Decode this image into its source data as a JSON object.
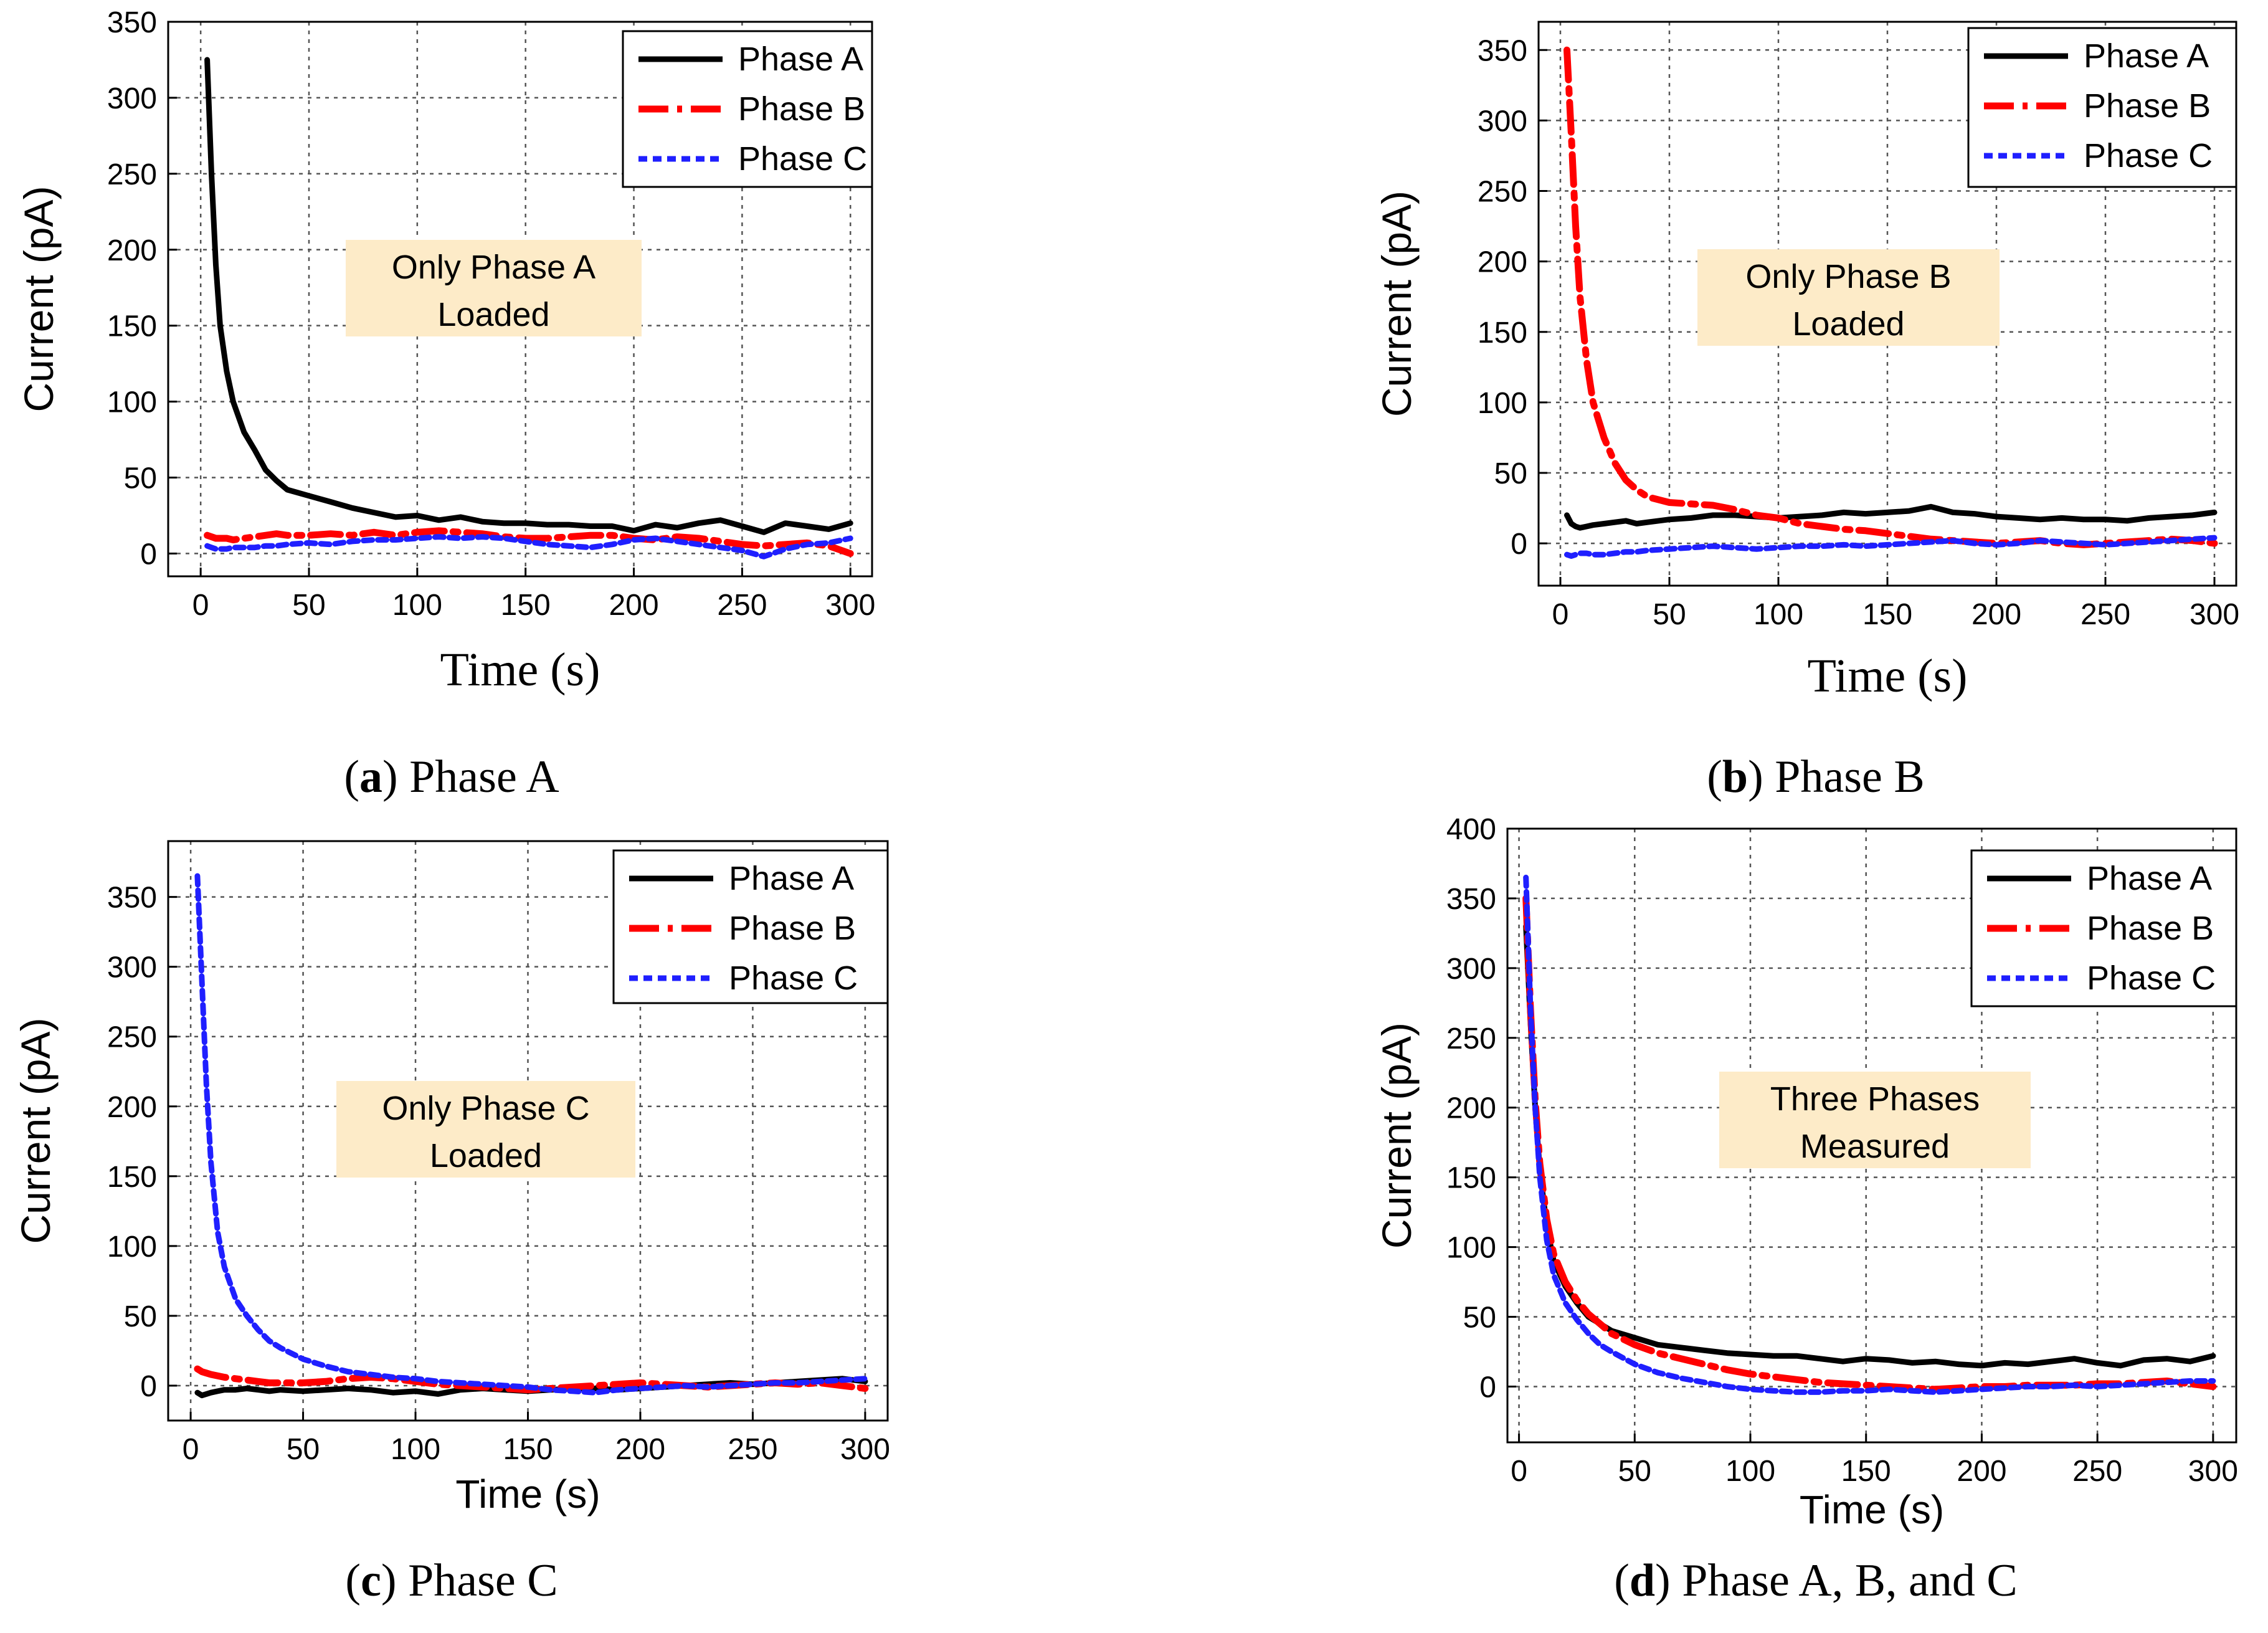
{
  "colors": {
    "phase_a": "#000000",
    "phase_b": "#ff0000",
    "phase_c": "#1f1fff",
    "annotation_bg": "#fdebc8",
    "grid": "#555555"
  },
  "legend": [
    "Phase A",
    "Phase B",
    "Phase C"
  ],
  "chart_data": [
    {
      "type": "line",
      "id": "a",
      "caption_letter": "a",
      "caption_text": " Phase A",
      "title": "",
      "xlabel": "Time (s)",
      "ylabel": "Current (pA)",
      "xlim": [
        -15,
        310
      ],
      "ylim": [
        -15,
        350
      ],
      "xticks": [
        0,
        50,
        100,
        150,
        200,
        250,
        300
      ],
      "yticks": [
        0,
        50,
        100,
        150,
        200,
        250,
        300,
        350
      ],
      "grid": true,
      "legend_position": "top-right",
      "annotation": [
        "Only Phase A",
        "Loaded"
      ],
      "x": [
        3,
        5,
        7,
        9,
        12,
        15,
        20,
        25,
        30,
        35,
        40,
        50,
        60,
        70,
        80,
        90,
        100,
        110,
        120,
        130,
        140,
        150,
        160,
        170,
        180,
        190,
        200,
        210,
        220,
        230,
        240,
        250,
        260,
        270,
        280,
        290,
        300
      ],
      "series": [
        {
          "name": "Phase A",
          "values": [
            325,
            250,
            190,
            150,
            120,
            100,
            80,
            68,
            55,
            48,
            42,
            38,
            34,
            30,
            27,
            24,
            25,
            22,
            24,
            21,
            20,
            20,
            19,
            19,
            18,
            18,
            15,
            19,
            17,
            20,
            22,
            18,
            14,
            20,
            18,
            16,
            20
          ]
        },
        {
          "name": "Phase B",
          "values": [
            12,
            11,
            10,
            10,
            10,
            9,
            10,
            11,
            12,
            13,
            12,
            12,
            13,
            12,
            14,
            12,
            14,
            15,
            14,
            13,
            11,
            10,
            10,
            11,
            12,
            12,
            10,
            9,
            11,
            10,
            8,
            6,
            5,
            6,
            7,
            5,
            0
          ]
        },
        {
          "name": "Phase C",
          "values": [
            5,
            4,
            3,
            3,
            3,
            4,
            4,
            4,
            5,
            5,
            6,
            7,
            6,
            8,
            9,
            9,
            10,
            11,
            10,
            11,
            10,
            8,
            6,
            5,
            4,
            6,
            9,
            10,
            8,
            6,
            4,
            2,
            -2,
            3,
            6,
            7,
            10
          ]
        }
      ]
    },
    {
      "type": "line",
      "id": "b",
      "caption_letter": "b",
      "caption_text": " Phase B",
      "title": "",
      "xlabel": "Time (s)",
      "ylabel": "Current (pA)",
      "xlim": [
        -10,
        310
      ],
      "ylim": [
        -30,
        370
      ],
      "xticks": [
        0,
        50,
        100,
        150,
        200,
        250,
        300
      ],
      "yticks": [
        0,
        50,
        100,
        150,
        200,
        250,
        300,
        350
      ],
      "grid": true,
      "legend_position": "top-right",
      "annotation": [
        "Only Phase B",
        "Loaded"
      ],
      "x": [
        3,
        5,
        7,
        9,
        12,
        15,
        20,
        25,
        30,
        35,
        40,
        50,
        60,
        70,
        80,
        90,
        100,
        110,
        120,
        130,
        140,
        150,
        160,
        170,
        180,
        190,
        200,
        210,
        220,
        230,
        240,
        250,
        260,
        270,
        280,
        290,
        300
      ],
      "series": [
        {
          "name": "Phase A",
          "values": [
            20,
            14,
            12,
            11,
            12,
            13,
            14,
            15,
            16,
            14,
            15,
            17,
            18,
            20,
            20,
            19,
            18,
            19,
            20,
            22,
            21,
            22,
            23,
            26,
            22,
            21,
            19,
            18,
            17,
            18,
            17,
            17,
            16,
            18,
            19,
            20,
            22
          ]
        },
        {
          "name": "Phase B",
          "values": [
            350,
            290,
            225,
            175,
            130,
            100,
            75,
            57,
            45,
            38,
            33,
            29,
            28,
            27,
            24,
            20,
            18,
            14,
            12,
            10,
            9,
            7,
            5,
            3,
            2,
            1,
            0,
            1,
            2,
            0,
            -1,
            0,
            1,
            2,
            3,
            2,
            0
          ]
        },
        {
          "name": "Phase C",
          "values": [
            -8,
            -9,
            -8,
            -7,
            -7,
            -8,
            -8,
            -7,
            -6,
            -6,
            -5,
            -4,
            -3,
            -2,
            -3,
            -4,
            -3,
            -2,
            -2,
            -1,
            -2,
            -1,
            0,
            1,
            2,
            0,
            -1,
            0,
            2,
            1,
            0,
            -1,
            0,
            1,
            2,
            3,
            4
          ]
        }
      ]
    },
    {
      "type": "line",
      "id": "c",
      "caption_letter": "c",
      "caption_text": " Phase C",
      "title": "",
      "xlabel": "Time (s)",
      "ylabel": "Current (pA)",
      "xlim": [
        -10,
        310
      ],
      "ylim": [
        -25,
        390
      ],
      "xticks": [
        0,
        50,
        100,
        150,
        200,
        250,
        300
      ],
      "yticks": [
        0,
        50,
        100,
        150,
        200,
        250,
        300,
        350
      ],
      "grid": true,
      "legend_position": "top-right",
      "annotation": [
        "Only Phase C",
        "Loaded"
      ],
      "x": [
        3,
        5,
        7,
        9,
        12,
        15,
        20,
        25,
        30,
        35,
        40,
        50,
        60,
        70,
        80,
        90,
        100,
        110,
        120,
        130,
        140,
        150,
        160,
        170,
        180,
        190,
        200,
        210,
        220,
        230,
        240,
        250,
        260,
        270,
        280,
        290,
        300
      ],
      "series": [
        {
          "name": "Phase A",
          "values": [
            -5,
            -7,
            -6,
            -5,
            -4,
            -3,
            -3,
            -2,
            -3,
            -4,
            -3,
            -4,
            -3,
            -2,
            -3,
            -5,
            -4,
            -6,
            -3,
            -2,
            -3,
            -4,
            -3,
            -2,
            -2,
            -3,
            -2,
            -1,
            0,
            1,
            2,
            1,
            2,
            3,
            4,
            5,
            3
          ]
        },
        {
          "name": "Phase B",
          "values": [
            12,
            10,
            9,
            8,
            7,
            6,
            5,
            4,
            3,
            2,
            2,
            2,
            3,
            5,
            6,
            5,
            3,
            1,
            0,
            -1,
            -2,
            -3,
            -2,
            -1,
            0,
            1,
            2,
            1,
            0,
            -1,
            0,
            1,
            2,
            1,
            2,
            0,
            -2
          ]
        },
        {
          "name": "Phase C",
          "values": [
            365,
            290,
            215,
            160,
            110,
            85,
            62,
            50,
            40,
            32,
            27,
            19,
            14,
            10,
            8,
            6,
            5,
            3,
            2,
            1,
            0,
            -1,
            -3,
            -4,
            -5,
            -3,
            -2,
            -1,
            0,
            -1,
            0,
            1,
            2,
            2,
            3,
            4,
            5
          ]
        }
      ]
    },
    {
      "type": "line",
      "id": "d",
      "caption_letter": "d",
      "caption_text": " Phase A, B, and C",
      "title": "",
      "xlabel": "Time (s)",
      "ylabel": "Current (pA)",
      "xlim": [
        -5,
        310
      ],
      "ylim": [
        -40,
        400
      ],
      "xticks": [
        0,
        50,
        100,
        150,
        200,
        250,
        300
      ],
      "yticks": [
        0,
        50,
        100,
        150,
        200,
        250,
        300,
        350,
        400
      ],
      "grid": true,
      "legend_position": "top-right",
      "annotation": [
        "Three Phases",
        "Measured"
      ],
      "x": [
        3,
        5,
        7,
        9,
        12,
        15,
        20,
        25,
        30,
        35,
        40,
        50,
        60,
        70,
        80,
        90,
        100,
        110,
        120,
        130,
        140,
        150,
        160,
        170,
        180,
        190,
        200,
        210,
        220,
        230,
        240,
        250,
        260,
        270,
        280,
        290,
        300
      ],
      "series": [
        {
          "name": "Phase A",
          "values": [
            330,
            260,
            200,
            155,
            115,
            90,
            72,
            60,
            50,
            45,
            40,
            35,
            30,
            28,
            26,
            24,
            23,
            22,
            22,
            20,
            18,
            20,
            19,
            17,
            18,
            16,
            15,
            17,
            16,
            18,
            20,
            17,
            15,
            19,
            20,
            18,
            22
          ]
        },
        {
          "name": "Phase B",
          "values": [
            350,
            270,
            205,
            160,
            120,
            95,
            75,
            62,
            52,
            45,
            38,
            30,
            24,
            20,
            16,
            12,
            9,
            7,
            5,
            3,
            2,
            1,
            0,
            -1,
            -2,
            -1,
            0,
            0,
            1,
            1,
            1,
            2,
            2,
            3,
            4,
            2,
            0
          ]
        },
        {
          "name": "Phase C",
          "values": [
            365,
            270,
            200,
            150,
            105,
            80,
            60,
            48,
            38,
            30,
            25,
            16,
            10,
            6,
            3,
            0,
            -2,
            -3,
            -4,
            -4,
            -3,
            -3,
            -2,
            -3,
            -4,
            -3,
            -2,
            -1,
            0,
            0,
            1,
            0,
            1,
            2,
            3,
            4,
            4
          ]
        }
      ]
    }
  ]
}
